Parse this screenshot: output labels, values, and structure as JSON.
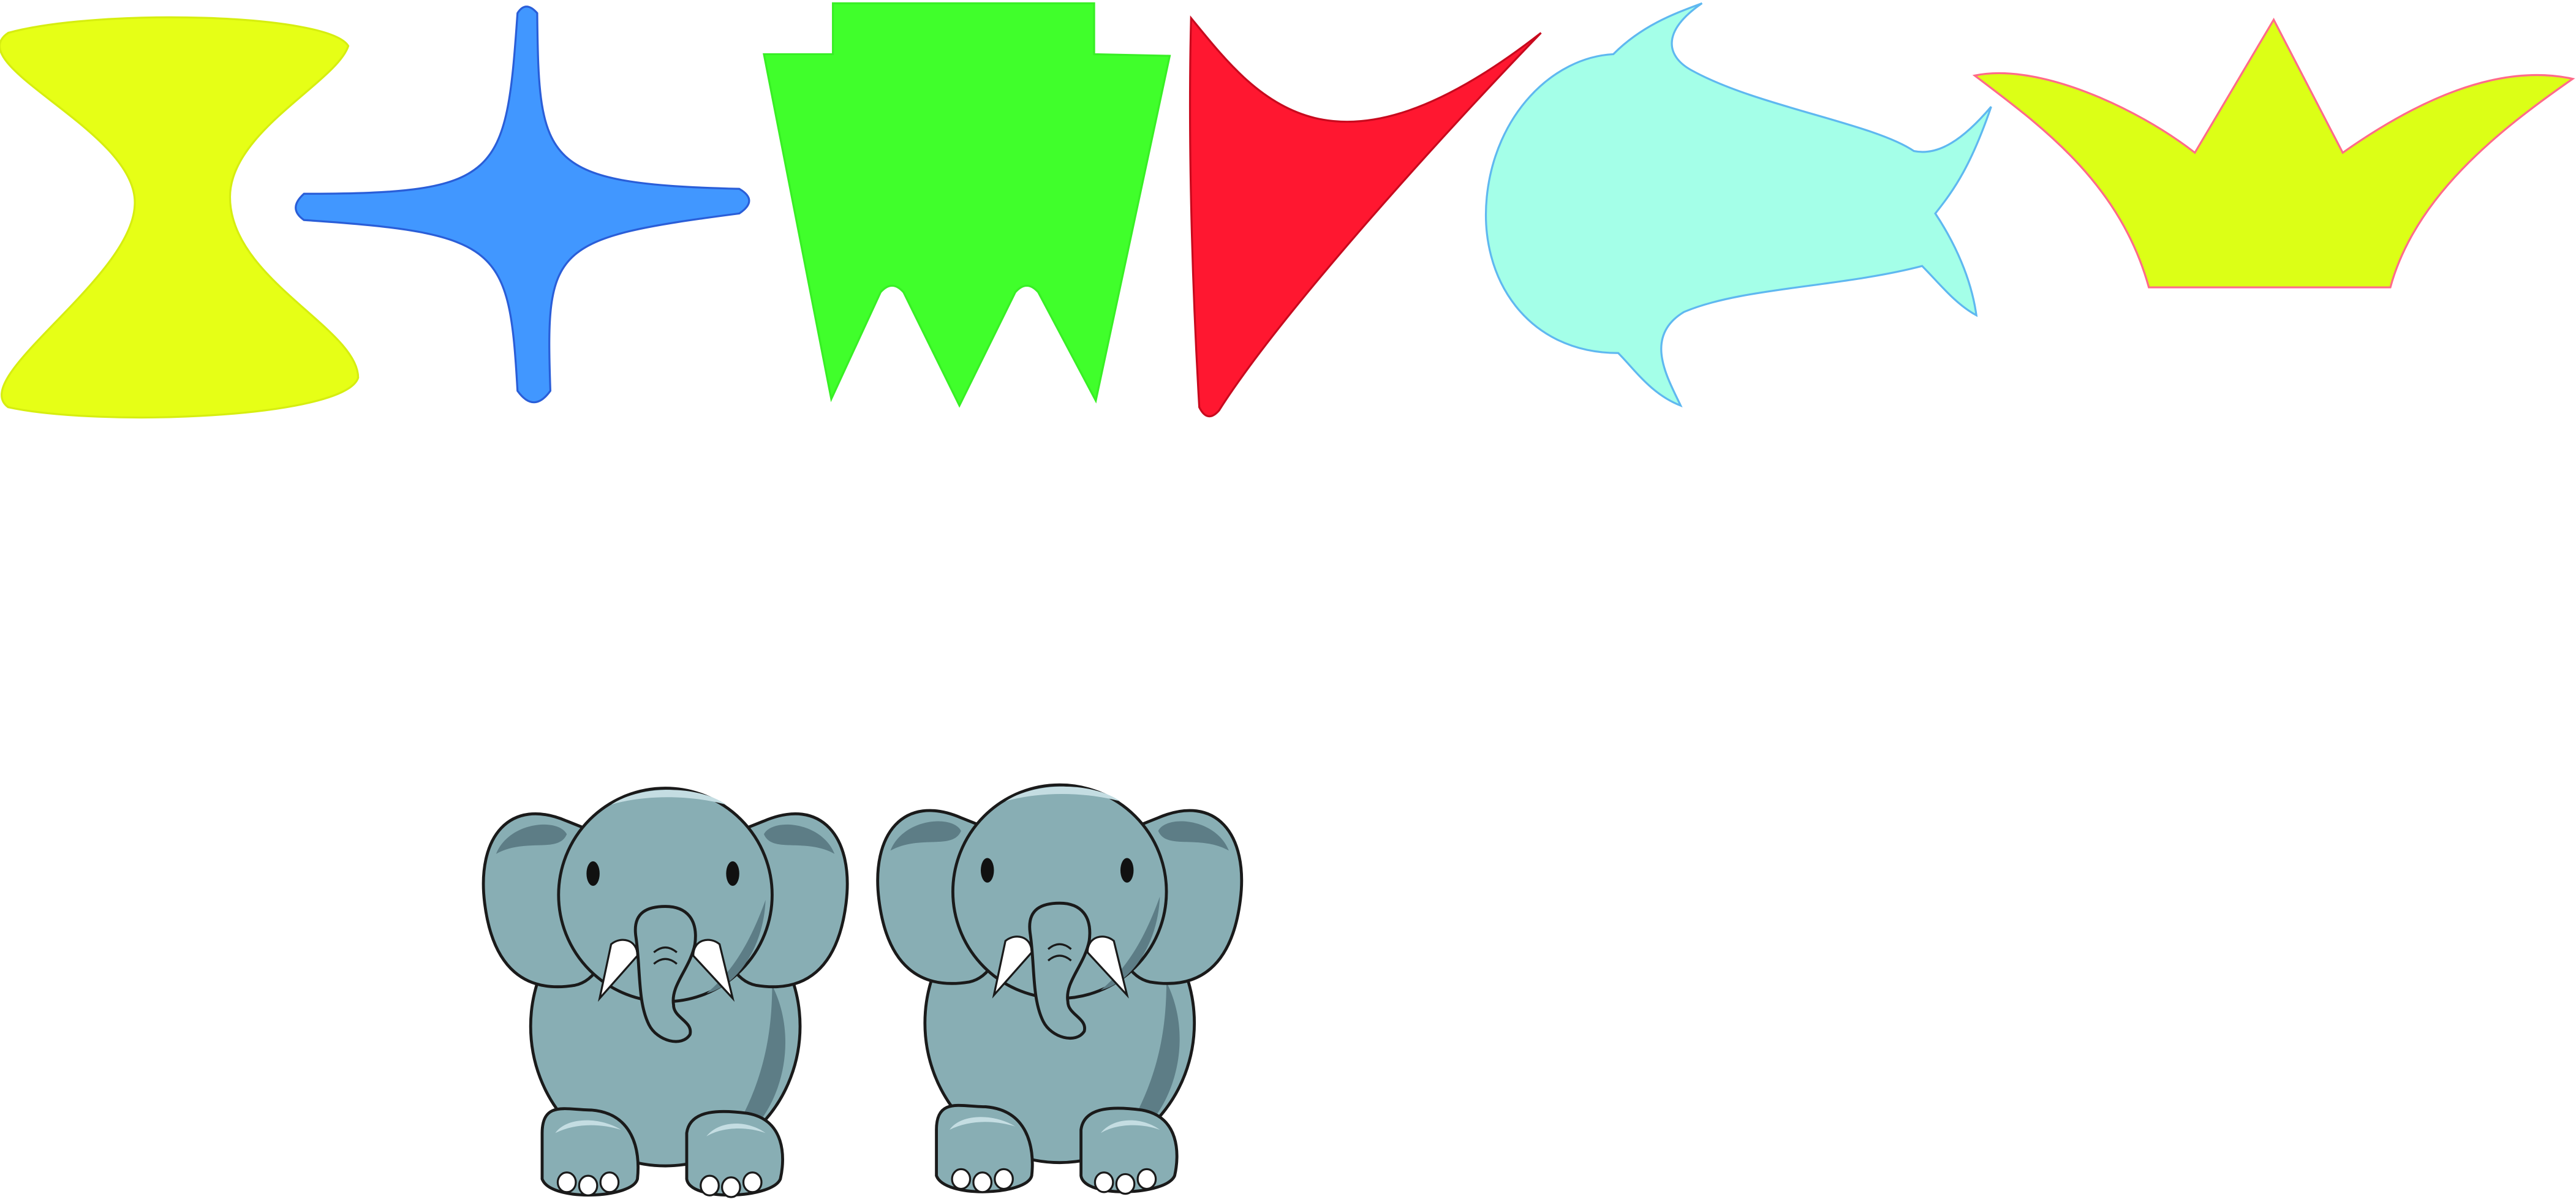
{
  "canvas": {
    "background": "#ffffff"
  },
  "shapes": [
    {
      "name": "hourglass-shape",
      "fill": "#e6ff16",
      "stroke": "#d6ee10"
    },
    {
      "name": "four-point-star-shape",
      "fill": "#4197ff",
      "stroke": "#2a5ed8"
    },
    {
      "name": "notched-banner-shape",
      "fill": "#40ff2b",
      "stroke": "#38ef25"
    },
    {
      "name": "curved-pennant-shape",
      "fill": "#ff1730",
      "stroke": "#c80a1e"
    },
    {
      "name": "fish-shape",
      "fill": "#a4ffe8",
      "stroke": "#5fb8f0"
    },
    {
      "name": "crown-shape",
      "fill": "#dcff16",
      "stroke": "#ff6b8a"
    }
  ],
  "elephants": {
    "count": 2,
    "body_color": "#88aeb4",
    "shadow_color": "#5d7d86",
    "highlight_color": "#c4dde2",
    "outline_color": "#1a1a1a",
    "tusk_color": "#ffffff"
  }
}
